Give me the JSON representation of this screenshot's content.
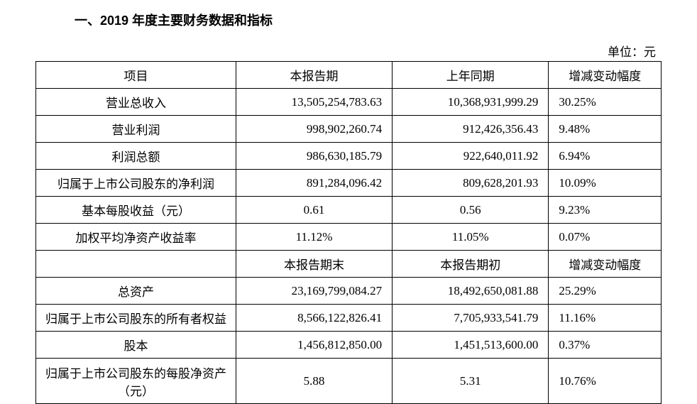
{
  "heading": "一、2019 年度主要财务数据和指标",
  "unit": "单位：元",
  "table": {
    "header": {
      "c1": "项目",
      "c2": "本报告期",
      "c3": "上年同期",
      "c4": "增减变动幅度"
    },
    "rows1": [
      {
        "label": "营业总收入",
        "cur": "13,505,254,783.63",
        "prev": "10,368,931,999.29",
        "chg": "30.25%"
      },
      {
        "label": "营业利润",
        "cur": "998,902,260.74",
        "prev": "912,426,356.43",
        "chg": "9.48%"
      },
      {
        "label": "利润总额",
        "cur": "986,630,185.79",
        "prev": "922,640,011.92",
        "chg": "6.94%"
      },
      {
        "label": "归属于上市公司股东的净利润",
        "cur": "891,284,096.42",
        "prev": "809,628,201.93",
        "chg": "10.09%"
      },
      {
        "label": "基本每股收益（元）",
        "cur": "0.61",
        "prev": "0.56",
        "chg": "9.23%"
      },
      {
        "label": "加权平均净资产收益率",
        "cur": "11.12%",
        "prev": "11.05%",
        "chg": "0.07%"
      }
    ],
    "mid_header": {
      "c2": "本报告期末",
      "c3": "本报告期初",
      "c4": "增减变动幅度"
    },
    "rows2": [
      {
        "label": "总资产",
        "cur": "23,169,799,084.27",
        "prev": "18,492,650,081.88",
        "chg": "25.29%"
      },
      {
        "label": "归属于上市公司股东的所有者权益",
        "cur": "8,566,122,826.41",
        "prev": "7,705,933,541.79",
        "chg": "11.16%"
      },
      {
        "label": "股本",
        "cur": "1,456,812,850.00",
        "prev": "1,451,513,600.00",
        "chg": "0.37%"
      },
      {
        "label": "归属于上市公司股东的每股净资产（元）",
        "cur": "5.88",
        "prev": "5.31",
        "chg": "10.76%",
        "tall": true
      }
    ]
  },
  "style": {
    "background_color": "#ffffff",
    "text_color": "#000000",
    "border_color": "#000000",
    "base_fontsize": 17,
    "heading_fontsize": 18,
    "col_widths_pct": [
      32,
      25,
      25,
      18
    ]
  }
}
